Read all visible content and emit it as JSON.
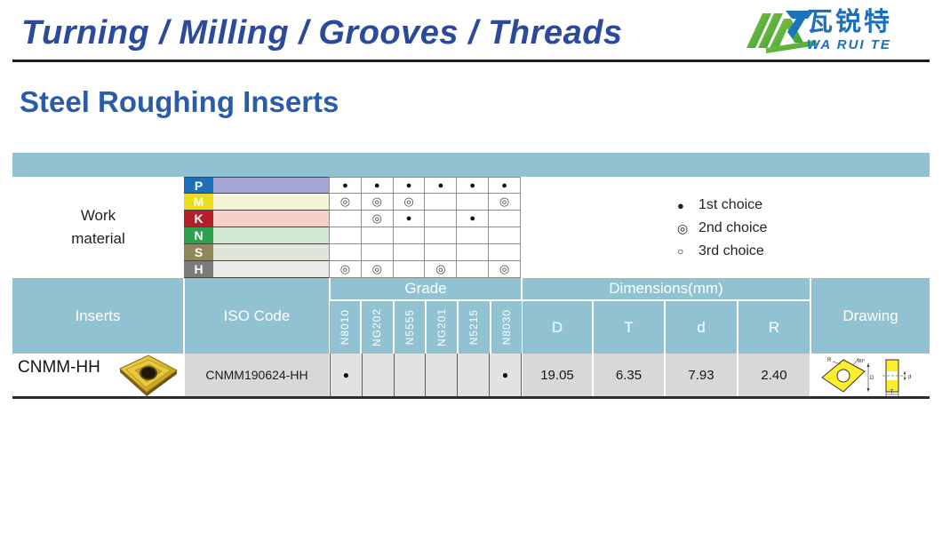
{
  "header": {
    "nav_title": "Turning / Milling / Grooves / Threads",
    "logo": {
      "cn": "瓦锐特",
      "en": "WA RUI TE"
    }
  },
  "page_title": "Steel Roughing Inserts",
  "work_material": {
    "label": [
      "Work",
      "material"
    ],
    "rows": [
      {
        "letter": "P",
        "tab_color": "#1d6fb8",
        "band_color": "#a6a6d6",
        "choices": [
          1,
          1,
          1,
          1,
          1,
          1
        ]
      },
      {
        "letter": "M",
        "tab_color": "#ecdc1e",
        "band_color": "#f3f3d6",
        "choices": [
          2,
          2,
          2,
          0,
          0,
          2
        ]
      },
      {
        "letter": "K",
        "tab_color": "#b3202b",
        "band_color": "#f9cfcb",
        "choices": [
          0,
          2,
          1,
          0,
          1,
          0
        ]
      },
      {
        "letter": "N",
        "tab_color": "#2ca24d",
        "band_color": "#d2e7d1",
        "choices": [
          0,
          0,
          0,
          0,
          0,
          0
        ]
      },
      {
        "letter": "S",
        "tab_color": "#91865a",
        "band_color": "#e0e4d9",
        "choices": [
          0,
          0,
          0,
          0,
          0,
          0
        ]
      },
      {
        "letter": "H",
        "tab_color": "#7b7b7b",
        "band_color": "#eaeaea",
        "choices": [
          2,
          2,
          0,
          2,
          0,
          2
        ]
      }
    ]
  },
  "legend": [
    {
      "symbol": "●",
      "label": "1st choice"
    },
    {
      "symbol": "◎",
      "label": "2nd choice"
    },
    {
      "symbol": "○",
      "label": "3rd choice"
    }
  ],
  "table": {
    "headers": {
      "inserts": "Inserts",
      "iso_code": "ISO Code",
      "grade": "Grade",
      "dimensions": "Dimensions(mm)",
      "drawing": "Drawing"
    },
    "grades": [
      "N8010",
      "NG202",
      "N5555",
      "NG201",
      "N5215",
      "N8030"
    ],
    "dim_columns": [
      "D",
      "T",
      "d",
      "R"
    ],
    "rows": [
      {
        "name": "CNMM-HH",
        "iso_code": "CNMM190624-HH",
        "grade_choices": [
          1,
          0,
          0,
          0,
          0,
          1
        ],
        "dims": [
          "19.05",
          "6.35",
          "7.93",
          "2.40"
        ]
      }
    ]
  },
  "drawing_labels": {
    "radius": "R",
    "angle": "80°",
    "diameter": "D",
    "hole": "d",
    "thickness": "T"
  },
  "colors": {
    "teal": "#90c2d2",
    "nav_blue": "#2b4a9b",
    "title_blue": "#2b5ca8",
    "logo_blue": "#1b6fc0",
    "logo_green": "#5ab32d",
    "gray_cell": "#d8d8d8",
    "grade_cell": "#e2e2e2",
    "insert_gold": "#d8b62a"
  }
}
